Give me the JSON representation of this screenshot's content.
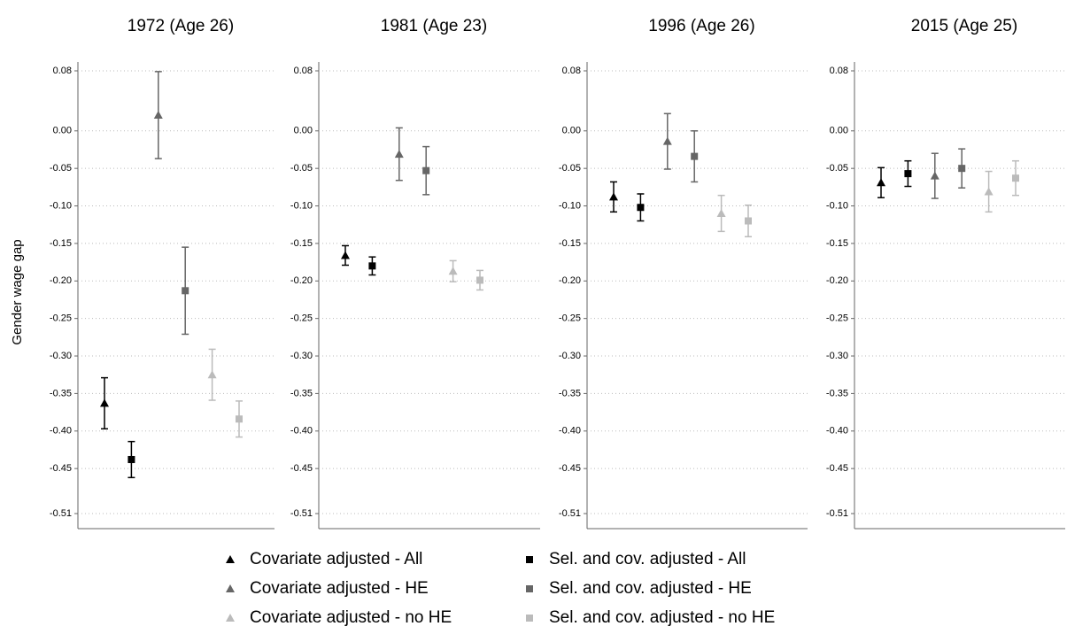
{
  "chart_data": {
    "type": "errorbar",
    "categories": [
      "1972 (Age 26)",
      "1981 (Age 23)",
      "1996 (Age 26)",
      "2015 (Age 25)"
    ],
    "ylabel": "Gender wage gap",
    "ylim": [
      -0.51,
      0.08
    ],
    "yticks": [
      0.08,
      {
        "value": 0,
        "label": "0.00"
      },
      -0.05,
      {
        "value": -0.1,
        "label": "-0.10"
      },
      -0.15,
      {
        "value": -0.2,
        "label": "-0.20"
      },
      -0.25,
      {
        "value": -0.3,
        "label": "-0.30"
      },
      -0.35,
      {
        "value": -0.4,
        "label": "-0.40"
      },
      -0.45,
      -0.51
    ],
    "grid": true,
    "series": [
      {
        "name": "Covariate adjusted - All",
        "color": "#000000",
        "marker": "triangle",
        "values": [
          -0.363,
          -0.166,
          -0.088,
          -0.069
        ],
        "errors": [
          0.034,
          0.013,
          0.02,
          0.02
        ]
      },
      {
        "name": "Sel. and cov. adjusted - All",
        "color": "#000000",
        "marker": "square",
        "values": [
          -0.438,
          -0.18,
          -0.102,
          -0.057
        ],
        "errors": [
          0.024,
          0.012,
          0.018,
          0.017
        ]
      },
      {
        "name": "Covariate adjusted - HE",
        "color": "#666666",
        "marker": "triangle",
        "values": [
          0.021,
          -0.031,
          -0.014,
          -0.06
        ],
        "errors": [
          0.058,
          0.035,
          0.037,
          0.03
        ]
      },
      {
        "name": "Sel. and cov. adjusted - HE",
        "color": "#666666",
        "marker": "square",
        "values": [
          -0.213,
          -0.053,
          -0.034,
          -0.05
        ],
        "errors": [
          0.058,
          0.032,
          0.034,
          0.026
        ]
      },
      {
        "name": "Covariate adjusted - no HE",
        "color": "#bbbbbb",
        "marker": "triangle",
        "values": [
          -0.325,
          -0.187,
          -0.11,
          -0.081
        ],
        "errors": [
          0.034,
          0.014,
          0.024,
          0.027
        ]
      },
      {
        "name": "Sel. and cov. adjusted - no HE",
        "color": "#bbbbbb",
        "marker": "square",
        "values": [
          -0.384,
          -0.199,
          -0.12,
          -0.063
        ],
        "errors": [
          0.024,
          0.013,
          0.021,
          0.023
        ]
      }
    ]
  }
}
